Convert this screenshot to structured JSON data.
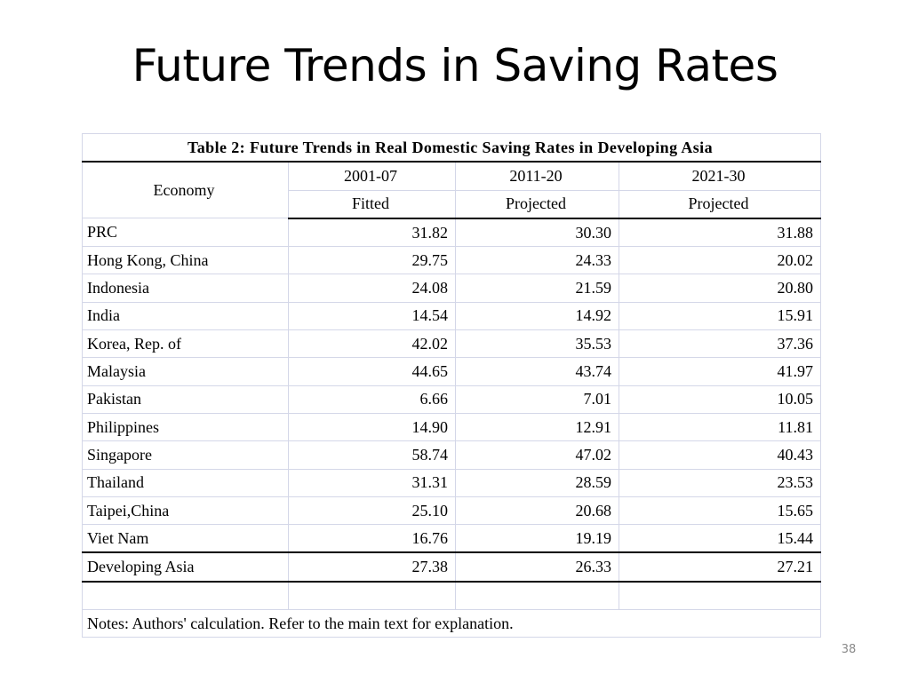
{
  "slide": {
    "title": "Future Trends in Saving Rates",
    "page_number": "38"
  },
  "table": {
    "caption": "Table 2: Future Trends in Real Domestic Saving Rates in Developing Asia",
    "header": {
      "economy_label": "Economy",
      "periods": [
        "2001-07",
        "2011-20",
        "2021-30"
      ],
      "kinds": [
        "Fitted",
        "Projected",
        "Projected"
      ]
    },
    "rows": [
      {
        "economy": "PRC",
        "values": [
          "31.82",
          "30.30",
          "31.88"
        ]
      },
      {
        "economy": "Hong Kong, China",
        "values": [
          "29.75",
          "24.33",
          "20.02"
        ]
      },
      {
        "economy": "Indonesia",
        "values": [
          "24.08",
          "21.59",
          "20.80"
        ]
      },
      {
        "economy": "India",
        "values": [
          "14.54",
          "14.92",
          "15.91"
        ]
      },
      {
        "economy": "Korea, Rep. of",
        "values": [
          "42.02",
          "35.53",
          "37.36"
        ]
      },
      {
        "economy": "Malaysia",
        "values": [
          "44.65",
          "43.74",
          "41.97"
        ]
      },
      {
        "economy": "Pakistan",
        "values": [
          "6.66",
          "7.01",
          "10.05"
        ]
      },
      {
        "economy": "Philippines",
        "values": [
          "14.90",
          "12.91",
          "11.81"
        ]
      },
      {
        "economy": "Singapore",
        "values": [
          "58.74",
          "47.02",
          "40.43"
        ]
      },
      {
        "economy": "Thailand",
        "values": [
          "31.31",
          "28.59",
          "23.53"
        ]
      },
      {
        "economy": "Taipei,China",
        "values": [
          "25.10",
          "20.68",
          "15.65"
        ]
      },
      {
        "economy": "Viet Nam",
        "values": [
          "16.76",
          "19.19",
          "15.44"
        ]
      }
    ],
    "total": {
      "economy": "Developing Asia",
      "values": [
        "27.38",
        "26.33",
        "27.21"
      ]
    },
    "notes": "Notes: Authors' calculation.  Refer to the main text for explanation."
  }
}
